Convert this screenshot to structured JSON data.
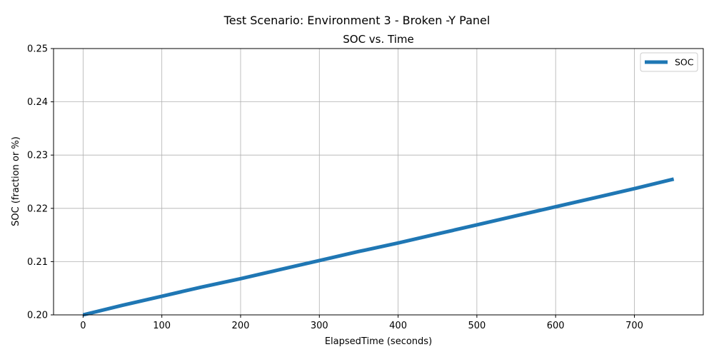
{
  "figure": {
    "suptitle": "Test Scenario: Environment 3 - Broken -Y Panel"
  },
  "chart_data": {
    "type": "line",
    "title": "SOC vs. Time",
    "xlabel": "ElapsedTime (seconds)",
    "ylabel": "SOC (fraction or %)",
    "xlim": [
      -37.5,
      787.5
    ],
    "ylim": [
      0.2,
      0.25
    ],
    "xticks": [
      0,
      100,
      200,
      300,
      400,
      500,
      600,
      700
    ],
    "xtick_labels": [
      "0",
      "100",
      "200",
      "300",
      "400",
      "500",
      "600",
      "700"
    ],
    "yticks": [
      0.2,
      0.21,
      0.22,
      0.23,
      0.24,
      0.25
    ],
    "ytick_labels": [
      "0.20",
      "0.21",
      "0.22",
      "0.23",
      "0.24",
      "0.25"
    ],
    "grid": true,
    "legend_position": "top-right",
    "series": [
      {
        "name": "SOC",
        "color": "#1f77b4",
        "x": [
          0,
          50,
          100,
          150,
          200,
          250,
          300,
          350,
          400,
          450,
          500,
          550,
          600,
          650,
          700,
          750
        ],
        "y": [
          0.2,
          0.2018,
          0.2035,
          0.2052,
          0.2068,
          0.2085,
          0.2102,
          0.2119,
          0.2135,
          0.2152,
          0.2169,
          0.2186,
          0.2203,
          0.222,
          0.2237,
          0.2255
        ]
      }
    ]
  }
}
